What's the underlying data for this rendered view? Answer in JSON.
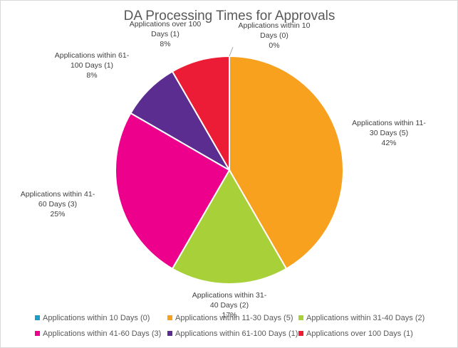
{
  "chart_data": {
    "type": "pie",
    "title": "DA Processing Times for Approvals",
    "legend_position": "bottom",
    "slices": [
      {
        "name": "Applications within 10 Days (0)",
        "label_lines": [
          "Applications within 10",
          "Days (0)"
        ],
        "value": 0,
        "percent_label": "0%",
        "color": "#1f9bc8"
      },
      {
        "name": "Applications within 11-30 Days (5)",
        "label_lines": [
          "Applications within 11-",
          "30 Days (5)"
        ],
        "value": 5,
        "percent_label": "42%",
        "color": "#f7a11f"
      },
      {
        "name": "Applications within 31-40 Days (2)",
        "label_lines": [
          "Applications within 31-",
          "40 Days (2)"
        ],
        "value": 2,
        "percent_label": "17%",
        "color": "#a8d038"
      },
      {
        "name": "Applications within 41-60 Days (3)",
        "label_lines": [
          "Applications within 41-",
          "60 Days (3)"
        ],
        "value": 3,
        "percent_label": "25%",
        "color": "#ec008c"
      },
      {
        "name": "Applications within 61-100 Days (1)",
        "label_lines": [
          "Applications within 61-",
          "100 Days (1)"
        ],
        "value": 1,
        "percent_label": "8%",
        "color": "#5c2d91"
      },
      {
        "name": "Applications over 100 Days (1)",
        "label_lines": [
          "Applications over 100",
          "Days (1)"
        ],
        "value": 1,
        "percent_label": "8%",
        "color": "#ed1c36"
      }
    ]
  }
}
